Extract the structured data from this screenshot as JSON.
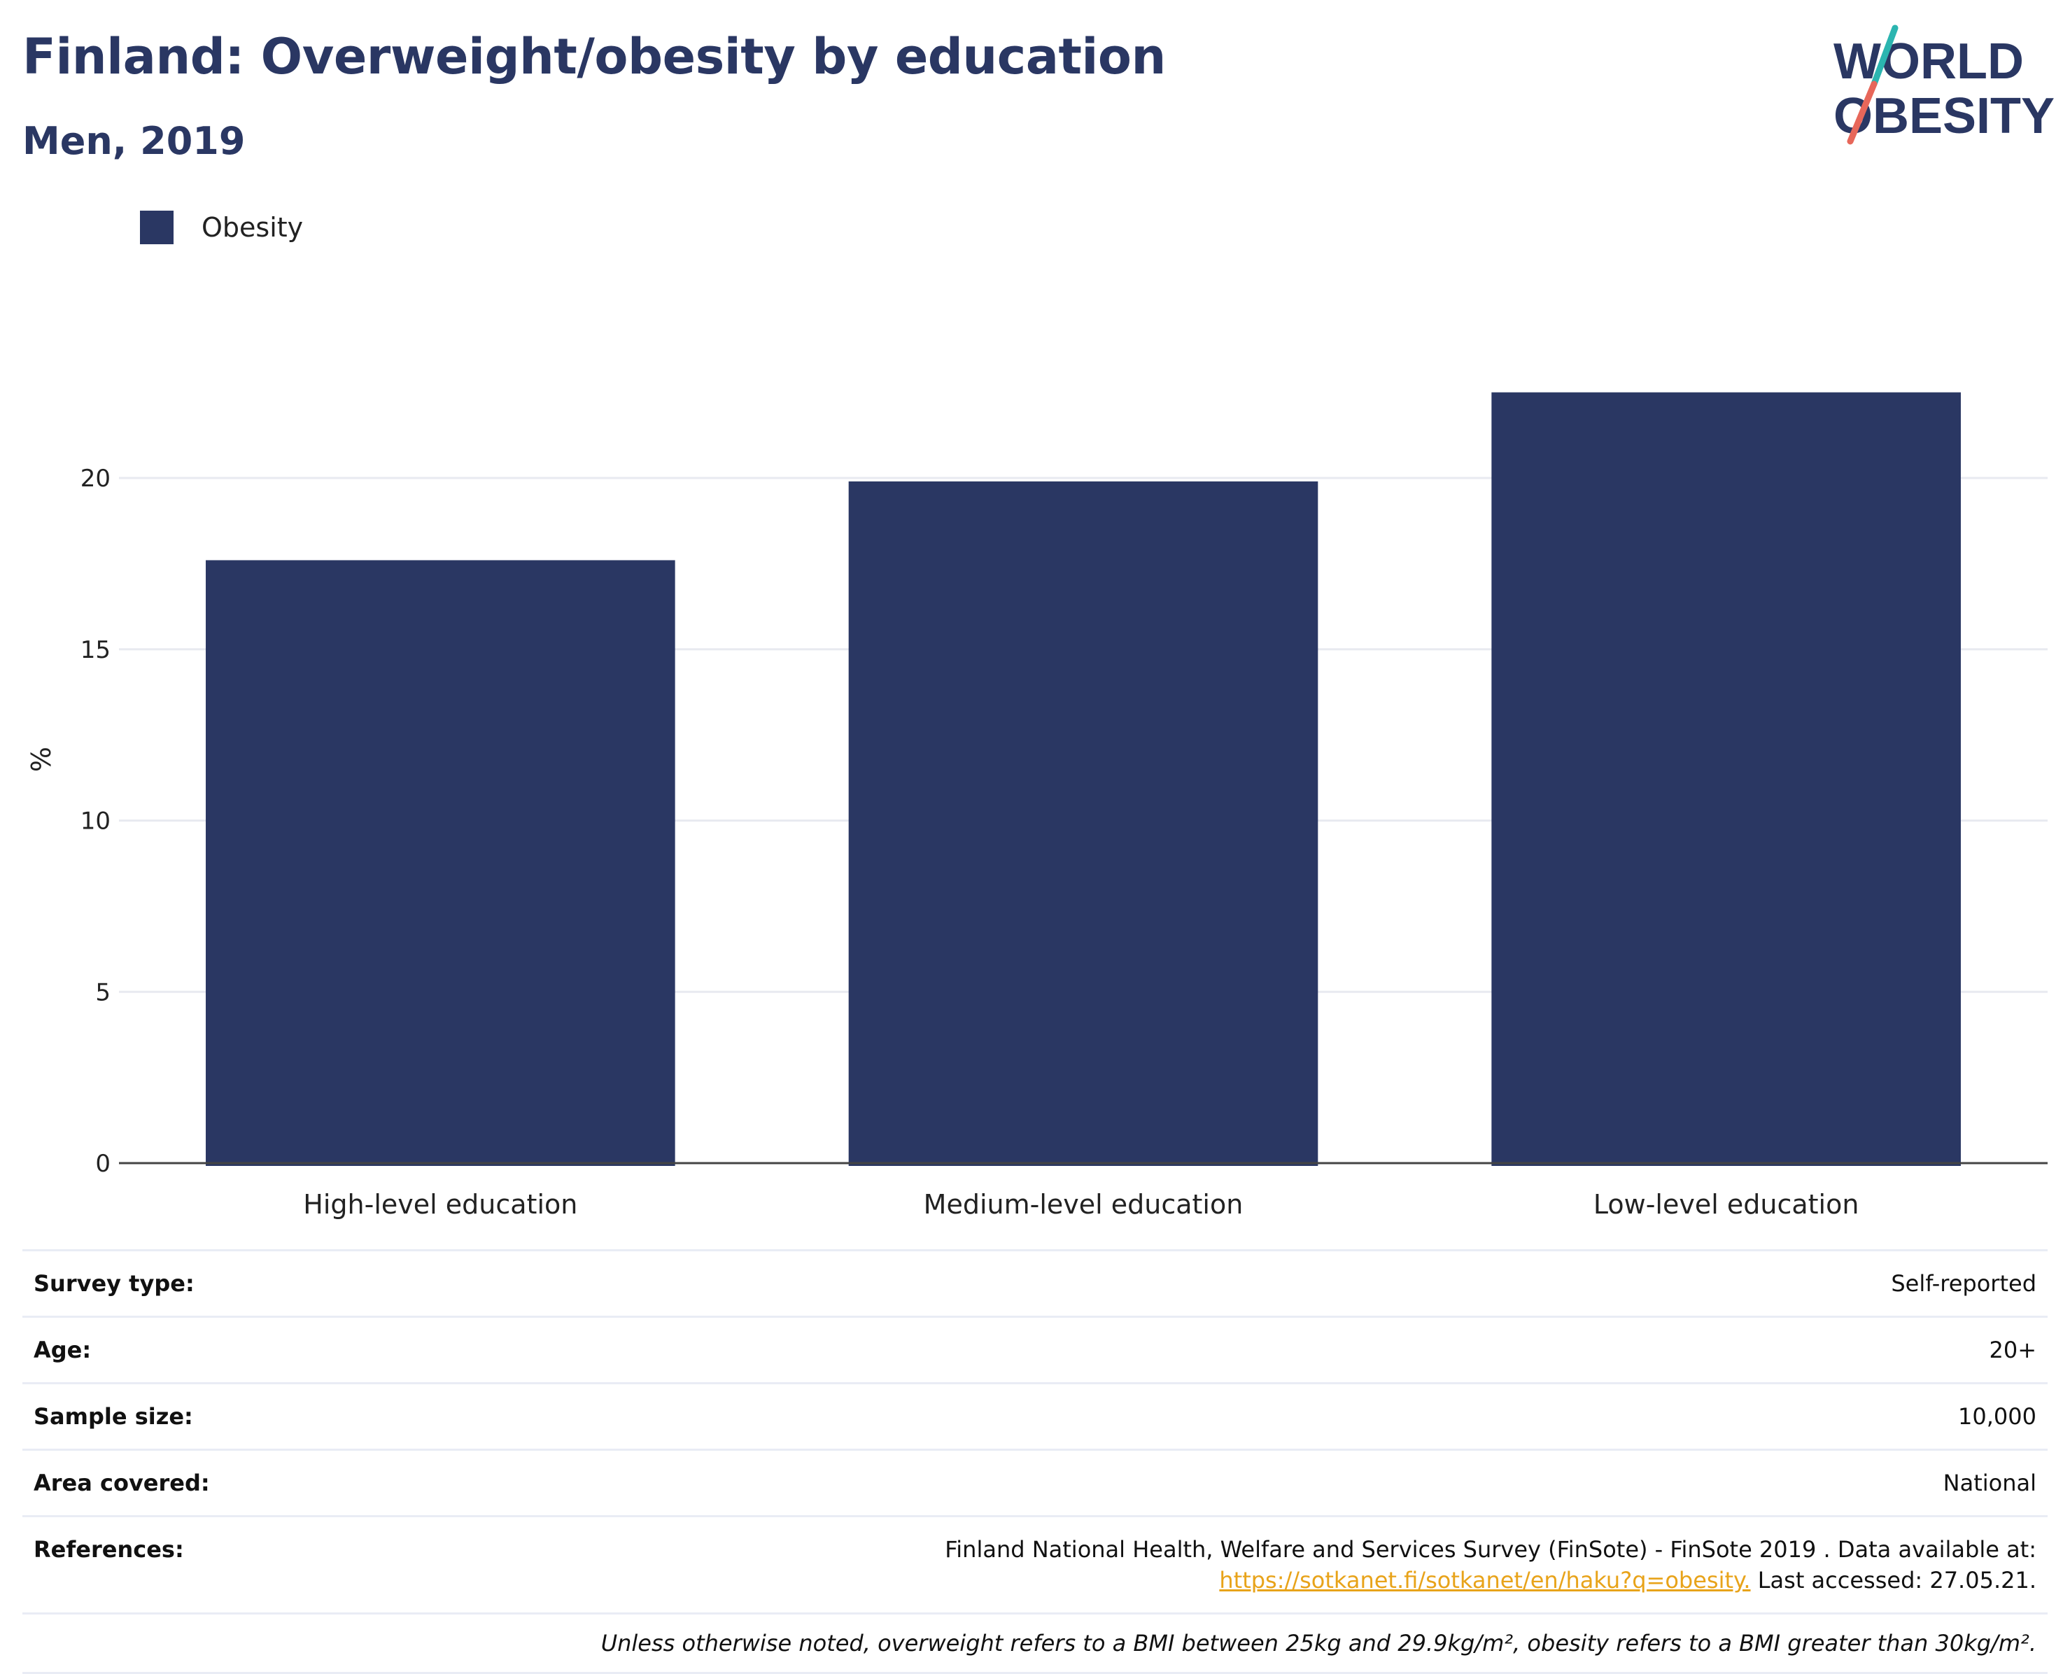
{
  "header": {
    "title": "Finland: Overweight/obesity by education",
    "subtitle": "Men, 2019"
  },
  "logo": {
    "line1": "WORLD",
    "line2": "OBESITY",
    "colors": {
      "text": "#2a3763",
      "slash_top": "#2bb5b0",
      "slash_bottom": "#e7675a"
    }
  },
  "legend": {
    "items": [
      {
        "label": "Obesity",
        "color": "#2a3763"
      }
    ]
  },
  "chart_data": {
    "type": "bar",
    "categories": [
      "High-level education",
      "Medium-level education",
      "Low-level education"
    ],
    "series": [
      {
        "name": "Obesity",
        "values": [
          17.6,
          19.9,
          22.5
        ],
        "color": "#2a3763"
      }
    ],
    "ylabel": "%",
    "xlabel": "",
    "ylim": [
      0,
      25
    ],
    "yticks": [
      0,
      5,
      10,
      15,
      20
    ],
    "grid": true,
    "legend_position": "top-left"
  },
  "info": {
    "rows": [
      {
        "label": "Survey type:",
        "value": "Self-reported"
      },
      {
        "label": "Age:",
        "value": "20+"
      },
      {
        "label": "Sample size:",
        "value": "10,000"
      },
      {
        "label": "Area covered:",
        "value": "National"
      }
    ],
    "references": {
      "label": "References:",
      "text": "Finland National Health, Welfare and Services Survey (FinSote) - FinSote 2019 . Data available at:",
      "link": "https://sotkanet.fi/sotkanet/en/haku?q=obesity.",
      "suffix": " Last accessed: 27.05.21."
    },
    "footnote": "Unless otherwise noted, overweight refers to a BMI between 25kg and 29.9kg/m², obesity refers to a BMI greater than 30kg/m²."
  }
}
